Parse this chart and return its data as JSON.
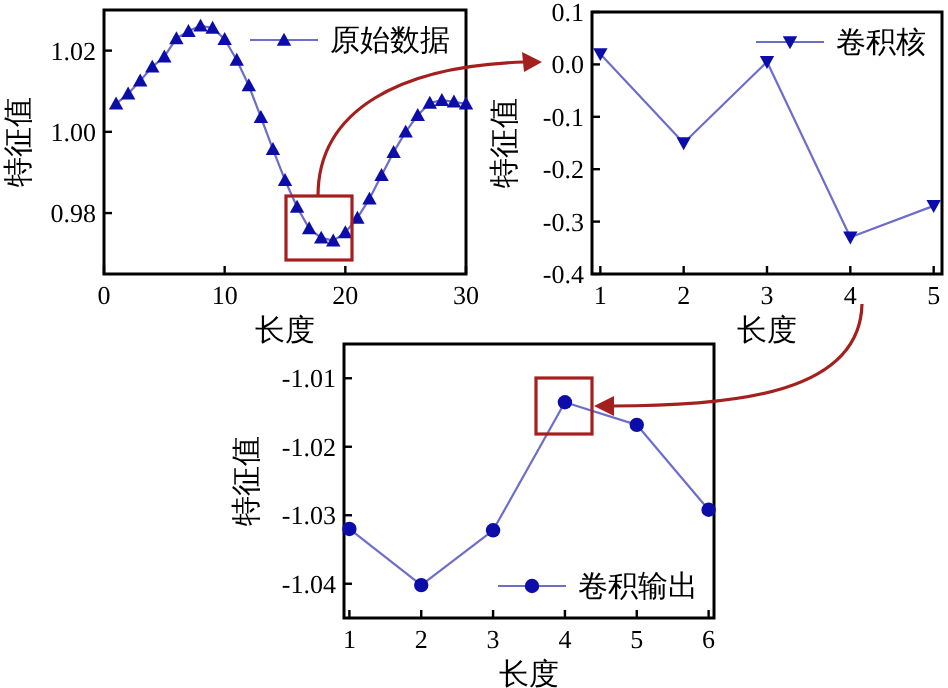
{
  "chart_data": [
    {
      "type": "line",
      "xlabel": "长度",
      "ylabel": "特征值",
      "x": [
        1,
        2,
        3,
        4,
        5,
        6,
        7,
        8,
        9,
        10,
        11,
        12,
        13,
        14,
        15,
        16,
        17,
        18,
        19,
        20,
        21,
        22,
        23,
        24,
        25,
        26,
        27,
        28,
        29,
        30
      ],
      "series": [
        {
          "name": "原始数据",
          "color": "#0c0ca8",
          "values": [
            1.0069,
            1.0094,
            1.0126,
            1.016,
            1.0185,
            1.023,
            1.0248,
            1.0261,
            1.0256,
            1.0228,
            1.0177,
            1.0114,
            1.0036,
            0.9957,
            0.9881,
            0.9815,
            0.9762,
            0.9739,
            0.9732,
            0.9752,
            0.9788,
            0.9835,
            0.9893,
            0.995,
            1.0,
            1.0041,
            1.0071,
            1.0078,
            1.0074,
            1.0069
          ]
        }
      ],
      "marker": "triangle",
      "xlim": [
        0,
        30
      ],
      "ylim": [
        0.965,
        1.03
      ],
      "xticks": [
        0,
        10,
        20,
        30
      ],
      "yticks": [
        0.98,
        {
          "value": 1,
          "label": "1.00"
        },
        1.02
      ],
      "legend": "top right",
      "grid": false
    },
    {
      "type": "line",
      "xlabel": "长度",
      "ylabel": "特征值",
      "x": [
        1,
        2,
        3,
        4,
        5
      ],
      "series": [
        {
          "name": "卷积核",
          "color": "#0c0ca8",
          "values": [
            0.02,
            -0.15,
            0.005,
            -0.33,
            -0.27
          ]
        }
      ],
      "marker": "triangle-down",
      "xlim": [
        0.9,
        5.1
      ],
      "ylim": [
        -0.4,
        0.1
      ],
      "xticks": [
        1,
        2,
        3,
        4,
        5
      ],
      "yticks": [
        -0.4,
        -0.3,
        -0.2,
        -0.1,
        {
          "value": 0,
          "label": "0.0"
        },
        0.1
      ],
      "legend": "top right",
      "grid": false
    },
    {
      "type": "line",
      "xlabel": "长度",
      "ylabel": "特征值",
      "x": [
        1,
        2,
        3,
        4,
        5,
        6
      ],
      "series": [
        {
          "name": "卷积输出",
          "color": "#0c0ca8",
          "values": [
            -1.032,
            -1.0402,
            -1.0322,
            -1.0135,
            -1.0168,
            -1.0292
          ]
        }
      ],
      "marker": "circle",
      "xlim": [
        0.925,
        6.075
      ],
      "ylim": [
        -1.045,
        -1.005
      ],
      "xticks": [
        1,
        2,
        3,
        4,
        5,
        6
      ],
      "yticks": [
        -1.04,
        -1.03,
        -1.02,
        -1.01
      ],
      "legend": "bottom right",
      "grid": false
    }
  ]
}
